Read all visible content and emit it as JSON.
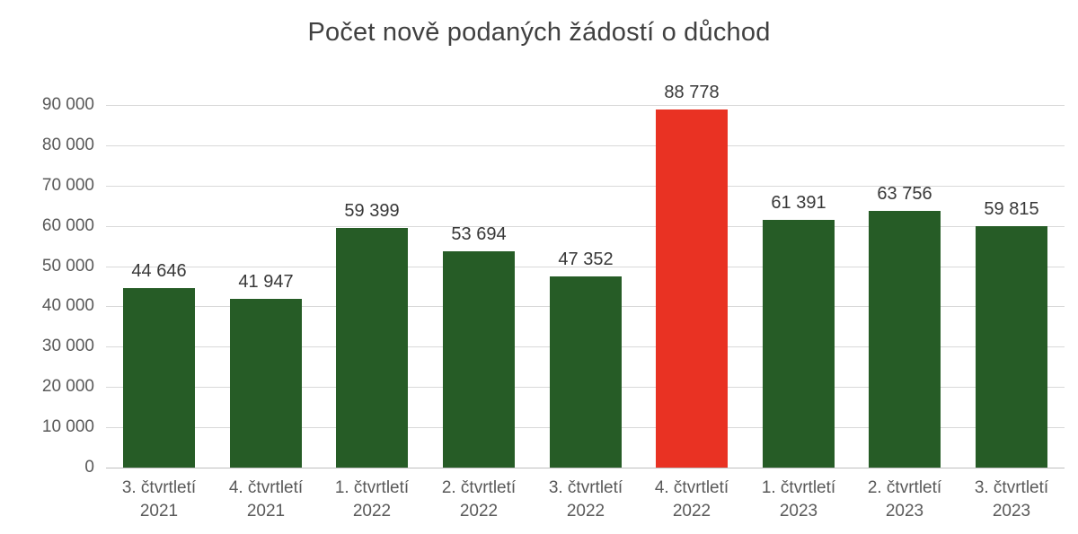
{
  "chart_data": {
    "type": "bar",
    "title": "Počet nově podaných žádostí o důchod",
    "categories": [
      {
        "quarter": "3. čtvrtletí",
        "year": "2021"
      },
      {
        "quarter": "4. čtvrtletí",
        "year": "2021"
      },
      {
        "quarter": "1. čtvrtletí",
        "year": "2022"
      },
      {
        "quarter": "2. čtvrtletí",
        "year": "2022"
      },
      {
        "quarter": "3. čtvrtletí",
        "year": "2022"
      },
      {
        "quarter": "4. čtvrtletí",
        "year": "2022"
      },
      {
        "quarter": "1. čtvrtletí",
        "year": "2023"
      },
      {
        "quarter": "2. čtvrtletí",
        "year": "2023"
      },
      {
        "quarter": "3. čtvrtletí",
        "year": "2023"
      }
    ],
    "values": [
      44646,
      41947,
      59399,
      53694,
      47352,
      88778,
      61391,
      63756,
      59815
    ],
    "value_labels": [
      "44 646",
      "41 947",
      "59 399",
      "53 694",
      "47 352",
      "88 778",
      "61 391",
      "63 756",
      "59 815"
    ],
    "y_ticks": [
      "0",
      "10 000",
      "20 000",
      "30 000",
      "40 000",
      "50 000",
      "60 000",
      "70 000",
      "80 000",
      "90 000"
    ],
    "ylim": [
      0,
      90000
    ],
    "y_tick_step": 10000,
    "grid": true,
    "legend": "none",
    "xlabel": "",
    "ylabel": "",
    "highlight_index": 5,
    "colors": {
      "bar_default": "#265c26",
      "bar_highlight": "#e93223",
      "gridline": "#d9d9d9",
      "axis_line": "#bfbfbf",
      "title_text": "#404040",
      "tick_text": "#595959",
      "value_text": "#383838"
    }
  }
}
